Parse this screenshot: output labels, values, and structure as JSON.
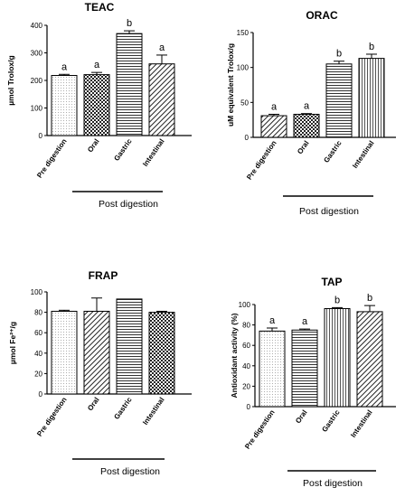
{
  "chart_data": [
    {
      "type": "bar",
      "title": "TEAC",
      "ylabel": "µmol Trolox/g",
      "ylim": [
        0,
        400
      ],
      "yticks": [
        "0",
        "100",
        "200",
        "300",
        "400"
      ],
      "categories": [
        "Pre digestion",
        "Oral",
        "Gastric",
        "Intestinal"
      ],
      "values": [
        218,
        221,
        370,
        260
      ],
      "errors": [
        4,
        8,
        10,
        32
      ],
      "significance": [
        "a",
        "a",
        "b",
        "a"
      ],
      "group_label": "Post digestion"
    },
    {
      "type": "bar",
      "title": "ORAC",
      "ylabel": "uM equivalent Trolox/g",
      "ylim": [
        0,
        150
      ],
      "yticks": [
        "0",
        "50",
        "100",
        "150"
      ],
      "categories": [
        "Pre digestion",
        "Oral",
        "Gastric",
        "Intestinal"
      ],
      "values": [
        31,
        33,
        105,
        113
      ],
      "errors": [
        2,
        1,
        4,
        6
      ],
      "significance": [
        "a",
        "a",
        "b",
        "b"
      ],
      "group_label": "Post digestion"
    },
    {
      "type": "bar",
      "title": "FRAP",
      "ylabel": "µmol Fe²⁺/g",
      "ylim": [
        0,
        100
      ],
      "yticks": [
        "0",
        "20",
        "40",
        "60",
        "80",
        "100"
      ],
      "categories": [
        "Pre digestion",
        "Oral",
        "Gastric",
        "Intestinal"
      ],
      "values": [
        81,
        81,
        93,
        80
      ],
      "errors": [
        1,
        13,
        0,
        1
      ],
      "significance": [
        "",
        "",
        "",
        ""
      ],
      "group_label": "Post digestion"
    },
    {
      "type": "bar",
      "title": "TAP",
      "ylabel": "Antioxidant activity (%)",
      "ylim": [
        0,
        100
      ],
      "yticks": [
        "0",
        "20",
        "40",
        "60",
        "80",
        "100"
      ],
      "categories": [
        "Pre digestion",
        "Oral",
        "Gastric",
        "Intestinal"
      ],
      "values": [
        74,
        75,
        96,
        93
      ],
      "errors": [
        3,
        1,
        1,
        6
      ],
      "significance": [
        "a",
        "a",
        "b",
        "b"
      ],
      "group_label": "Post digestion"
    }
  ],
  "bar_patterns": [
    "dots",
    "checker",
    "hlines",
    "diag",
    "vlines"
  ]
}
